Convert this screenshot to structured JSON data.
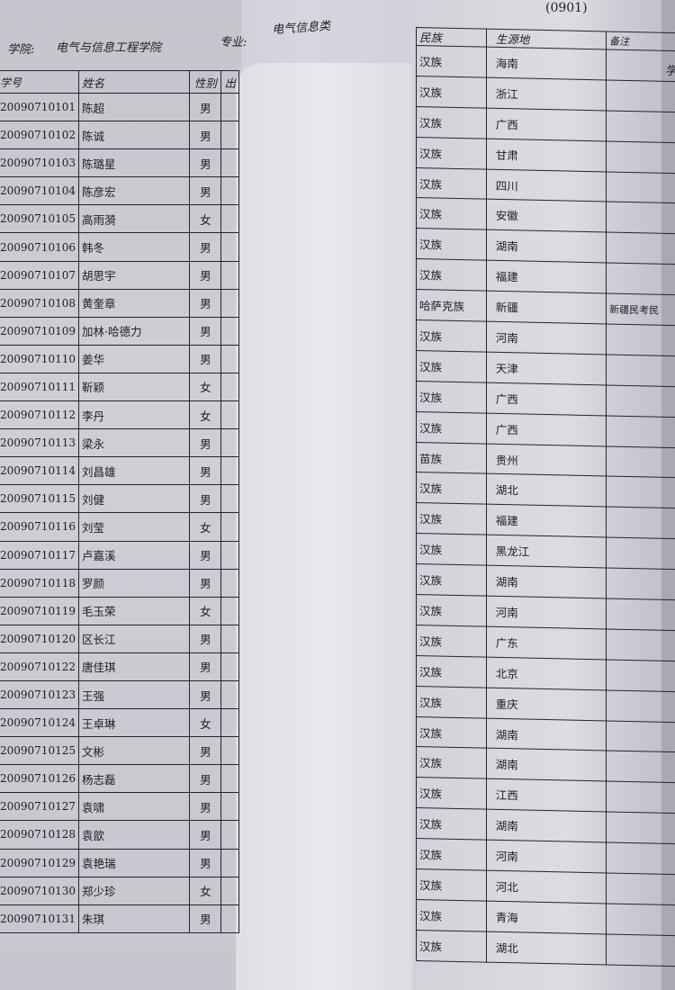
{
  "header": {
    "college_label": "学院:",
    "college_value": "电气与信息工程学院",
    "major_label": "专业:",
    "major_value": "电气信息类",
    "code_fragment": "(0901)",
    "next_page_fragment": "学"
  },
  "left_table": {
    "columns": [
      "学号",
      "姓名",
      "性别",
      "出"
    ],
    "rows": [
      [
        "20090710101",
        "陈超",
        "男"
      ],
      [
        "20090710102",
        "陈诚",
        "男"
      ],
      [
        "20090710103",
        "陈璐星",
        "男"
      ],
      [
        "20090710104",
        "陈彦宏",
        "男"
      ],
      [
        "20090710105",
        "高雨漪",
        "女"
      ],
      [
        "20090710106",
        "韩冬",
        "男"
      ],
      [
        "20090710107",
        "胡思宇",
        "男"
      ],
      [
        "20090710108",
        "黄奎章",
        "男"
      ],
      [
        "20090710109",
        "加林·哈德力",
        "男"
      ],
      [
        "20090710110",
        "姜华",
        "男"
      ],
      [
        "20090710111",
        "靳颖",
        "女"
      ],
      [
        "20090710112",
        "李丹",
        "女"
      ],
      [
        "20090710113",
        "梁永",
        "男"
      ],
      [
        "20090710114",
        "刘昌雄",
        "男"
      ],
      [
        "20090710115",
        "刘健",
        "男"
      ],
      [
        "20090710116",
        "刘莹",
        "女"
      ],
      [
        "20090710117",
        "卢嘉溪",
        "男"
      ],
      [
        "20090710118",
        "罗颜",
        "男"
      ],
      [
        "20090710119",
        "毛玉荣",
        "女"
      ],
      [
        "20090710120",
        "区长江",
        "男"
      ],
      [
        "20090710122",
        "唐佳琪",
        "男"
      ],
      [
        "20090710123",
        "王强",
        "男"
      ],
      [
        "20090710124",
        "王卓琳",
        "女"
      ],
      [
        "20090710125",
        "文彬",
        "男"
      ],
      [
        "20090710126",
        "杨志磊",
        "男"
      ],
      [
        "20090710127",
        "袁啸",
        "男"
      ],
      [
        "20090710128",
        "袁歆",
        "男"
      ],
      [
        "20090710129",
        "袁艳瑞",
        "男"
      ],
      [
        "20090710130",
        "郑少珍",
        "女"
      ],
      [
        "20090710131",
        "朱琪",
        "男"
      ]
    ]
  },
  "right_table": {
    "columns": [
      "民族",
      "生源地",
      "备注"
    ],
    "rows": [
      [
        "汉族",
        "海南",
        ""
      ],
      [
        "汉族",
        "浙江",
        ""
      ],
      [
        "汉族",
        "广西",
        ""
      ],
      [
        "汉族",
        "甘肃",
        ""
      ],
      [
        "汉族",
        "四川",
        ""
      ],
      [
        "汉族",
        "安徽",
        ""
      ],
      [
        "汉族",
        "湖南",
        ""
      ],
      [
        "汉族",
        "福建",
        ""
      ],
      [
        "哈萨克族",
        "新疆",
        "新疆民考民"
      ],
      [
        "汉族",
        "河南",
        ""
      ],
      [
        "汉族",
        "天津",
        ""
      ],
      [
        "汉族",
        "广西",
        ""
      ],
      [
        "汉族",
        "广西",
        ""
      ],
      [
        "苗族",
        "贵州",
        ""
      ],
      [
        "汉族",
        "湖北",
        ""
      ],
      [
        "汉族",
        "福建",
        ""
      ],
      [
        "汉族",
        "黑龙江",
        ""
      ],
      [
        "汉族",
        "湖南",
        ""
      ],
      [
        "汉族",
        "河南",
        ""
      ],
      [
        "汉族",
        "广东",
        ""
      ],
      [
        "汉族",
        "北京",
        ""
      ],
      [
        "汉族",
        "重庆",
        ""
      ],
      [
        "汉族",
        "湖南",
        ""
      ],
      [
        "汉族",
        "湖南",
        ""
      ],
      [
        "汉族",
        "江西",
        ""
      ],
      [
        "汉族",
        "湖南",
        ""
      ],
      [
        "汉族",
        "河南",
        ""
      ],
      [
        "汉族",
        "河北",
        ""
      ],
      [
        "汉族",
        "青海",
        ""
      ],
      [
        "汉族",
        "湖北",
        ""
      ]
    ]
  }
}
